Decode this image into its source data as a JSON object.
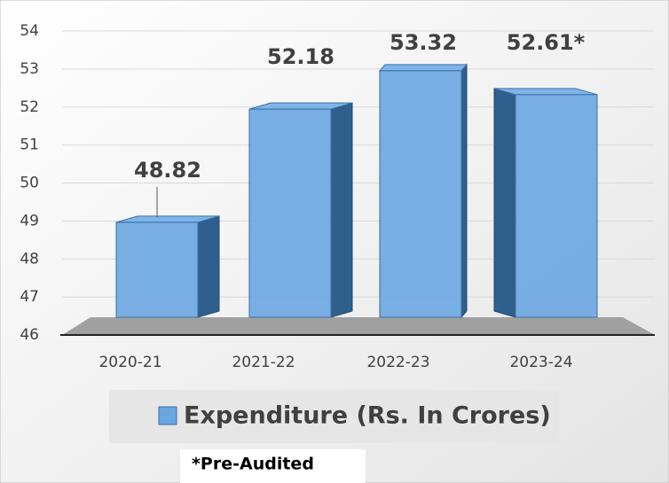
{
  "chart_data": {
    "type": "bar3d",
    "categories": [
      "2020-21",
      "2021-22",
      "2022-23",
      "2023-24"
    ],
    "series": [
      {
        "name": "Expenditure (Rs. In Crores)",
        "color": "#6aa6e0",
        "values": [
          48.82,
          52.18,
          53.32,
          52.61
        ],
        "value_labels": [
          "48.82",
          "52.18",
          "53.32",
          "52.61*"
        ]
      }
    ],
    "ylim": [
      46,
      54
    ],
    "yticks": [
      46,
      47,
      48,
      49,
      50,
      51,
      52,
      53,
      54
    ],
    "grid": true,
    "note": "*Pre-Audited"
  }
}
